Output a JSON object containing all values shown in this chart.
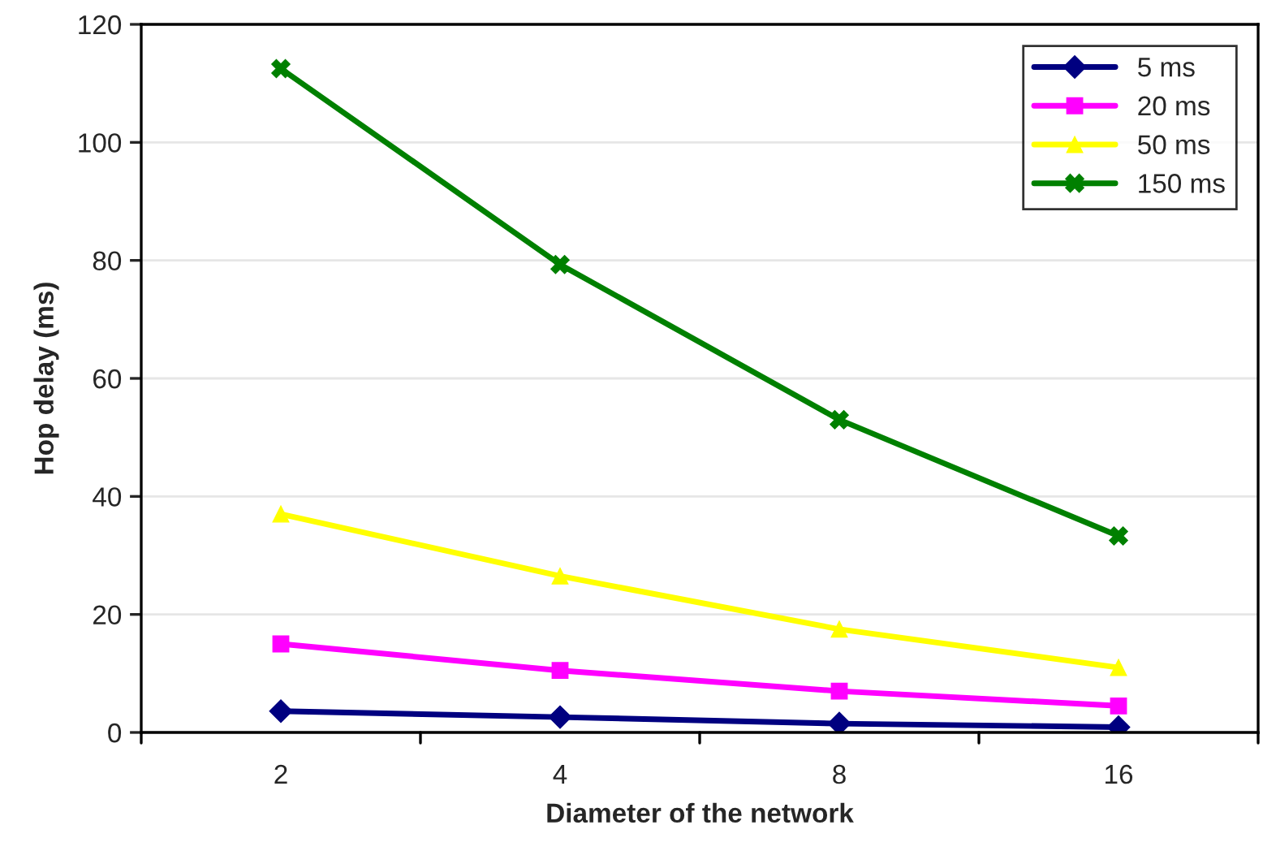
{
  "chart_data": {
    "type": "line",
    "xlabel": "Diameter of the network",
    "ylabel": "Hop delay (ms)",
    "categories": [
      "2",
      "4",
      "8",
      "16"
    ],
    "series": [
      {
        "name": "5 ms",
        "color": "#000080",
        "marker": "diamond",
        "values": [
          3.6,
          2.6,
          1.5,
          0.9
        ]
      },
      {
        "name": "20 ms",
        "color": "#ff00ff",
        "marker": "square",
        "values": [
          15,
          10.5,
          7,
          4.5
        ]
      },
      {
        "name": "50 ms",
        "color": "#ffff00",
        "marker": "triangle",
        "values": [
          37,
          26.5,
          17.5,
          11
        ]
      },
      {
        "name": "150 ms",
        "color": "#008000",
        "marker": "cross",
        "values": [
          112.5,
          79.3,
          53,
          33.3
        ]
      }
    ],
    "ylim": [
      0,
      120
    ],
    "yticks": [
      0,
      20,
      40,
      60,
      80,
      100,
      120
    ],
    "grid": "y",
    "legend": "top right",
    "line_style": "solid"
  }
}
